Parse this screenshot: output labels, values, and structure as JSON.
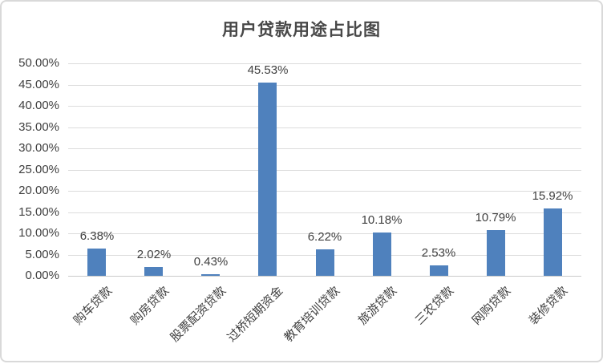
{
  "chart_data": {
    "type": "bar",
    "title": "用户贷款用途占比图",
    "categories": [
      "购车贷款",
      "购房贷款",
      "股票配资贷款",
      "过桥短期资金",
      "教育培训贷款",
      "旅游贷款",
      "三农贷款",
      "网购贷款",
      "装修贷款"
    ],
    "values": [
      6.38,
      2.02,
      0.43,
      45.53,
      6.22,
      10.18,
      2.53,
      10.79,
      15.92
    ],
    "data_labels": [
      "6.38%",
      "2.02%",
      "0.43%",
      "45.53%",
      "6.22%",
      "10.18%",
      "2.53%",
      "10.79%",
      "15.92%"
    ],
    "yticks": [
      "0.00%",
      "5.00%",
      "10.00%",
      "15.00%",
      "20.00%",
      "25.00%",
      "30.00%",
      "35.00%",
      "40.00%",
      "45.00%",
      "50.00%"
    ],
    "xlabel": "",
    "ylabel": "",
    "ylim": [
      0,
      50
    ],
    "ytick_step": 5,
    "grid": true,
    "legend": false,
    "bar_color": "#4f81bd",
    "gridline_color": "#dcdcdc",
    "text_color": "#3f3f3f",
    "title_color": "#484848"
  }
}
